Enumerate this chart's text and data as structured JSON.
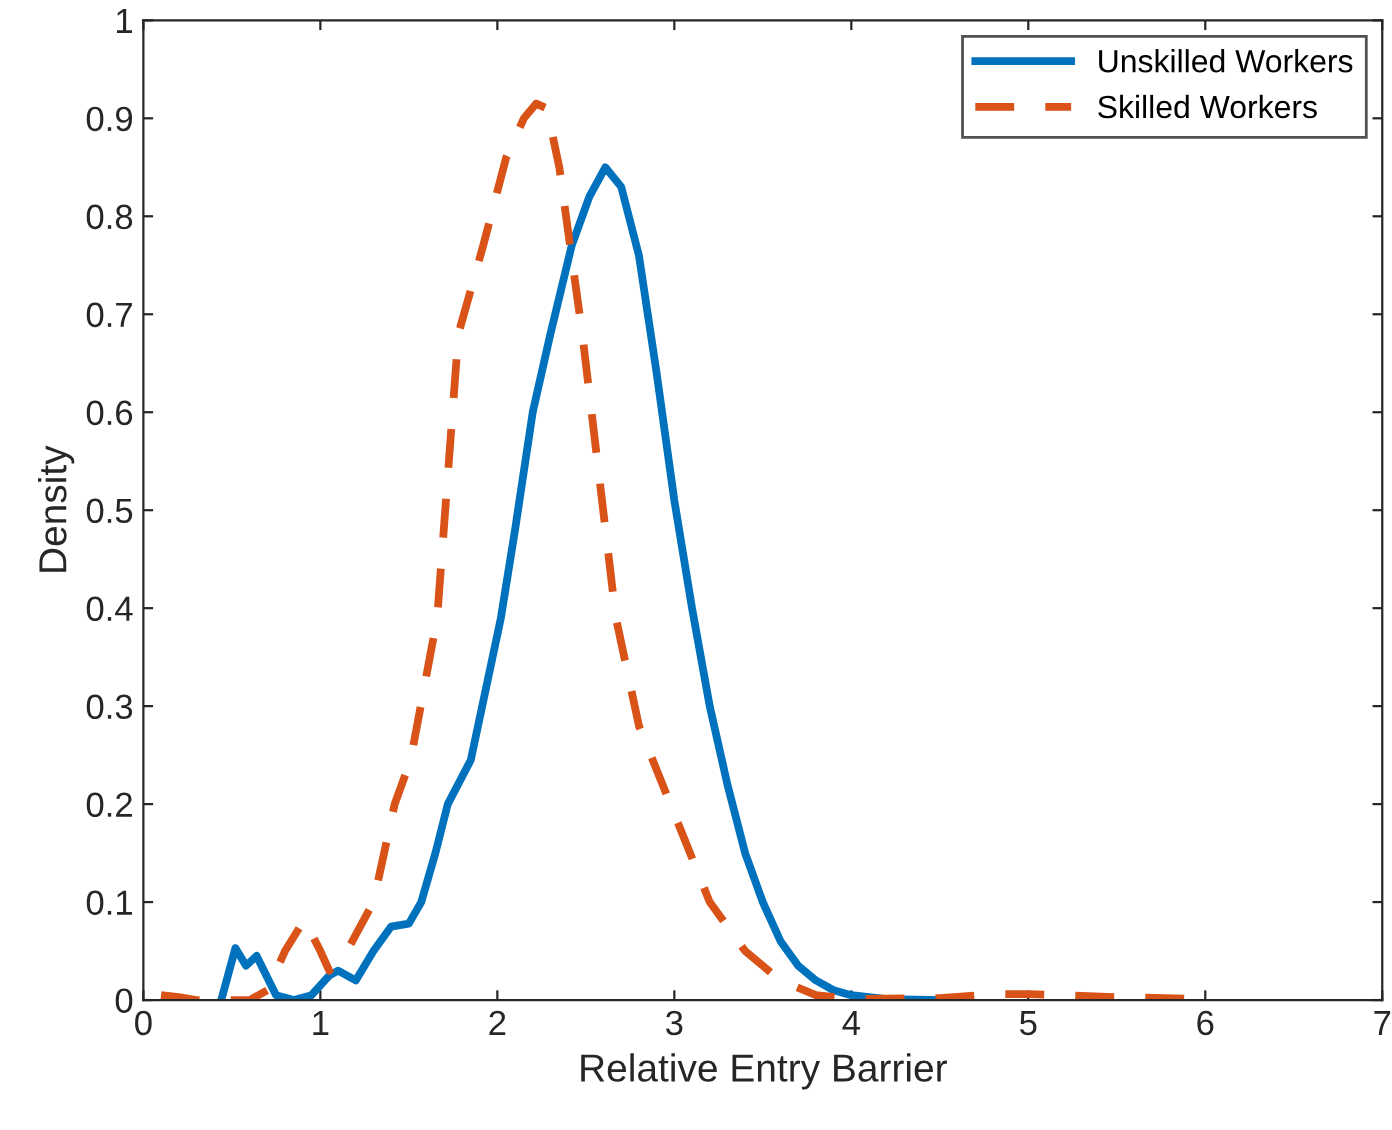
{
  "chart_data": {
    "type": "line",
    "xlabel": "Relative Entry Barrier",
    "ylabel": "Density",
    "xlim": [
      0,
      7
    ],
    "ylim": [
      0,
      1
    ],
    "xticks": [
      0,
      1,
      2,
      3,
      4,
      5,
      6,
      7
    ],
    "yticks": [
      0,
      0.1,
      0.2,
      0.3,
      0.4,
      0.5,
      0.6,
      0.7,
      0.8,
      0.9,
      1
    ],
    "grid": false,
    "legend": "top right",
    "marker": "none",
    "series": [
      {
        "name": "Unskilled Workers",
        "color": "#0072bd",
        "line_style": "solid",
        "x": [
          0.44,
          0.52,
          0.58,
          0.64,
          0.75,
          0.85,
          0.95,
          1.05,
          1.1,
          1.2,
          1.3,
          1.4,
          1.5,
          1.57,
          1.65,
          1.72,
          1.85,
          2.02,
          2.1,
          2.2,
          2.3,
          2.42,
          2.52,
          2.61,
          2.7,
          2.8,
          2.9,
          3.0,
          3.1,
          3.2,
          3.3,
          3.4,
          3.5,
          3.6,
          3.7,
          3.8,
          3.9,
          4.0,
          4.2,
          4.5
        ],
        "values": [
          0,
          0.053,
          0.035,
          0.045,
          0.005,
          0,
          0.005,
          0.025,
          0.03,
          0.02,
          0.05,
          0.075,
          0.078,
          0.1,
          0.15,
          0.2,
          0.245,
          0.39,
          0.48,
          0.6,
          0.68,
          0.77,
          0.82,
          0.85,
          0.83,
          0.76,
          0.64,
          0.51,
          0.4,
          0.3,
          0.22,
          0.15,
          0.1,
          0.06,
          0.035,
          0.02,
          0.01,
          0.005,
          0.001,
          0
        ]
      },
      {
        "name": "Skilled Workers",
        "color": "#d95319",
        "line_style": "dashed",
        "x": [
          0.1,
          0.2,
          0.3,
          0.5,
          0.6,
          0.7,
          0.8,
          0.91,
          1.0,
          1.05,
          1.15,
          1.3,
          1.42,
          1.51,
          1.66,
          1.78,
          1.92,
          2.05,
          2.15,
          2.22,
          2.28,
          2.35,
          2.48,
          2.67,
          2.8,
          3.0,
          3.2,
          3.4,
          3.6,
          3.8,
          4.0,
          4.5,
          4.8,
          5.0,
          5.5,
          6.0
        ],
        "values": [
          0.005,
          0.003,
          0,
          0,
          0,
          0.01,
          0.05,
          0.082,
          0.05,
          0.03,
          0.05,
          0.1,
          0.2,
          0.245,
          0.39,
          0.68,
          0.77,
          0.86,
          0.9,
          0.915,
          0.91,
          0.85,
          0.68,
          0.39,
          0.28,
          0.19,
          0.1,
          0.05,
          0.02,
          0.005,
          0.001,
          0.002,
          0.006,
          0.006,
          0.003,
          0.001
        ]
      }
    ]
  }
}
